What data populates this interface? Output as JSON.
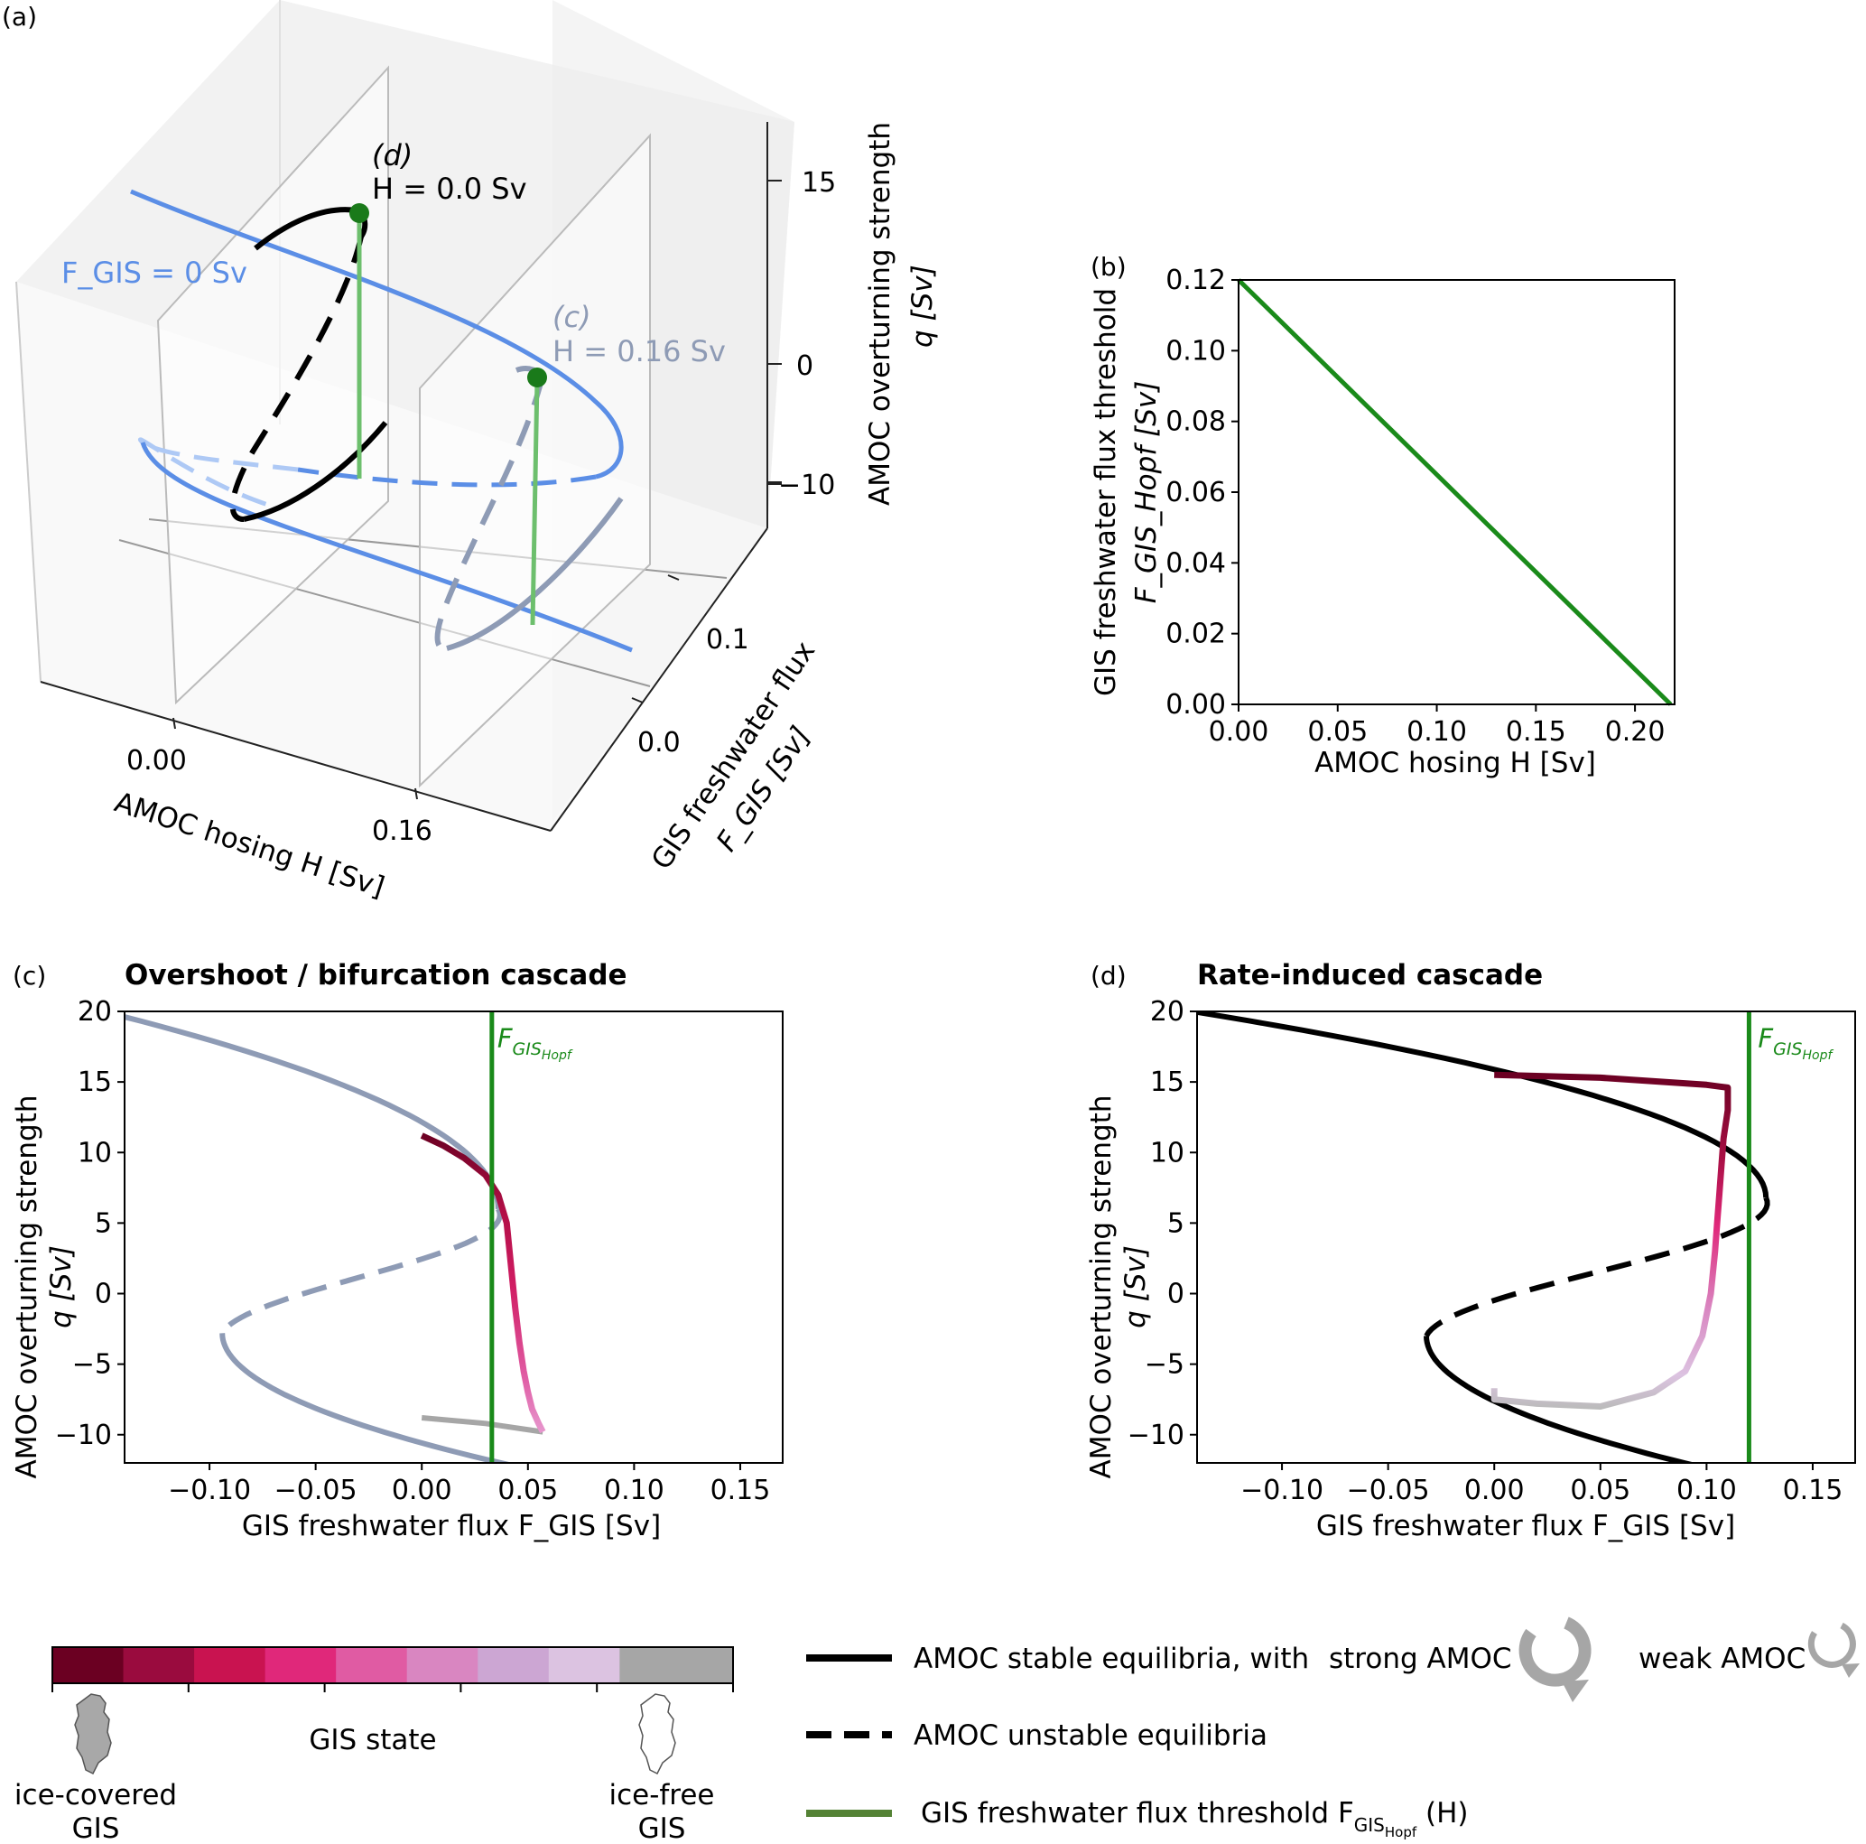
{
  "panel_a": {
    "label": "(a)",
    "x_axis": {
      "label": "AMOC hosing H [Sv]",
      "ticks": [
        "0.00",
        "0.16"
      ]
    },
    "y_axis": {
      "label_line1": "GIS freshwater flux",
      "label_line2": "F_GIS [Sv]",
      "ticks": [
        "0.0",
        "0.1"
      ]
    },
    "z_axis": {
      "label_line1": "AMOC overturning strength",
      "label_line2": "q [Sv]",
      "ticks": [
        "15",
        "0",
        "−10"
      ]
    },
    "annotations": {
      "d_label": "(d)",
      "d_value": "H = 0.0 Sv",
      "c_label": "(c)",
      "c_value": "H = 0.16 Sv",
      "fgis_curve": "F_GIS = 0 Sv"
    },
    "colors": {
      "fgis_curve": "#5b8ee6",
      "fgis_light": "#aec9f5",
      "slice_d": "#000000",
      "slice_c": "#8e9bb5",
      "threshold": "#1a8a1a"
    }
  },
  "panel_b": {
    "label": "(b)",
    "chart_data": {
      "type": "line",
      "xlabel": "AMOC hosing H [Sv]",
      "ylabel_line1": "GIS freshwater flux threshold",
      "ylabel_line2": "F_GIS_Hopf [Sv]",
      "xlim": [
        0,
        0.22
      ],
      "ylim": [
        0,
        0.12
      ],
      "x_ticks": [
        "0.00",
        "0.05",
        "0.10",
        "0.15",
        "0.20"
      ],
      "y_ticks": [
        "0.00",
        "0.02",
        "0.04",
        "0.06",
        "0.08",
        "0.10",
        "0.12"
      ],
      "series": [
        {
          "x": [
            0,
            0.218
          ],
          "y": [
            0.12,
            0.0
          ],
          "color": "#1a8a1a"
        }
      ]
    }
  },
  "panel_c": {
    "label": "(c)",
    "title": "Overshoot / bifurcation cascade",
    "chart_data": {
      "type": "line",
      "xlabel": "GIS freshwater flux F_GIS [Sv]",
      "ylabel_line1": "AMOC overturning strength",
      "ylabel_line2": "q [Sv]",
      "xlim": [
        -0.14,
        0.17
      ],
      "ylim": [
        -12,
        20
      ],
      "x_ticks": [
        "−0.10",
        "−0.05",
        "0.00",
        "0.05",
        "0.10",
        "0.15"
      ],
      "y_ticks": [
        "−10",
        "−5",
        "0",
        "5",
        "10",
        "15",
        "20"
      ],
      "threshold_x": 0.033,
      "threshold_label": "F_GIS_Hopf",
      "equilibrium_color": "#8e9bb5",
      "trajectory": {
        "x": [
          0.0,
          0.01,
          0.02,
          0.03,
          0.036,
          0.04,
          0.042,
          0.044,
          0.046,
          0.048,
          0.05,
          0.052,
          0.055,
          0.057
        ],
        "y": [
          11.2,
          10.5,
          9.6,
          8.4,
          7.0,
          5.0,
          2.0,
          -1.0,
          -3.5,
          -5.5,
          -7.0,
          -8.2,
          -9.2,
          -9.8
        ],
        "tail_x": [
          0.057,
          0.03,
          0.0
        ],
        "tail_y": [
          -9.8,
          -9.2,
          -8.8
        ]
      }
    }
  },
  "panel_d": {
    "label": "(d)",
    "title": "Rate-induced cascade",
    "chart_data": {
      "type": "line",
      "xlabel": "GIS freshwater flux F_GIS [Sv]",
      "ylabel_line1": "AMOC overturning strength",
      "ylabel_line2": "q [Sv]",
      "xlim": [
        -0.14,
        0.17
      ],
      "ylim": [
        -12,
        20
      ],
      "x_ticks": [
        "−0.10",
        "−0.05",
        "0.00",
        "0.05",
        "0.10",
        "0.15"
      ],
      "y_ticks": [
        "−10",
        "−5",
        "0",
        "5",
        "10",
        "15",
        "20"
      ],
      "threshold_x": 0.12,
      "threshold_label": "F_GIS_Hopf",
      "equilibrium_color": "#000000",
      "trajectory": {
        "x": [
          0.0,
          0.05,
          0.08,
          0.1,
          0.11,
          0.11,
          0.108,
          0.107,
          0.106,
          0.105,
          0.104,
          0.102,
          0.098,
          0.09,
          0.075,
          0.05,
          0.02,
          0.0,
          0.0
        ],
        "y": [
          15.5,
          15.3,
          15.0,
          14.8,
          14.6,
          13.0,
          11.0,
          9.0,
          7.0,
          5.0,
          3.0,
          0.0,
          -3.0,
          -5.5,
          -7.0,
          -8.0,
          -7.8,
          -7.5,
          -6.7
        ]
      }
    }
  },
  "colorbar": {
    "label": "GIS state",
    "left_label_line1": "ice-covered",
    "left_label_line2": "GIS",
    "right_label_line1": "ice-free",
    "right_label_line2": "GIS",
    "colors": [
      "#6b0022",
      "#9a0b3e",
      "#c91350",
      "#e0287a",
      "#e05ba3",
      "#d986c1",
      "#cca6d3",
      "#dcc3e1",
      "#a6a6a6"
    ]
  },
  "legend": {
    "stable": "AMOC stable equilibria, with",
    "strong": "strong AMOC",
    "weak": "weak AMOC",
    "unstable": "AMOC unstable equilibria",
    "threshold": "GIS freshwater flux threshold F_GIS_Hopf (H)",
    "threshold_color": "#548235"
  }
}
